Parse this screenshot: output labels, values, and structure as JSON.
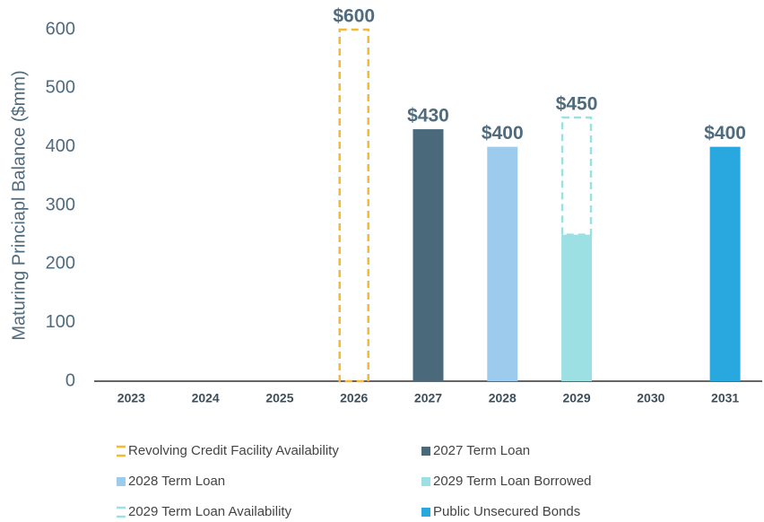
{
  "chart_data": {
    "type": "bar",
    "stacked": true,
    "y_label": "Maturing Princiapl Balance ($mm)",
    "categories": [
      "2023",
      "2024",
      "2025",
      "2026",
      "2027",
      "2028",
      "2029",
      "2030",
      "2031"
    ],
    "series": [
      {
        "name": "Revolving Credit Facility Availability",
        "color": "#f5b935",
        "style": "dashed",
        "values": [
          null,
          null,
          null,
          600,
          null,
          null,
          null,
          null,
          null
        ]
      },
      {
        "name": "2027 Term Loan",
        "color": "#4a6a7c",
        "style": "solid",
        "values": [
          null,
          null,
          null,
          null,
          430,
          null,
          null,
          null,
          null
        ]
      },
      {
        "name": "2028 Term Loan",
        "color": "#9ccbee",
        "style": "solid",
        "values": [
          null,
          null,
          null,
          null,
          null,
          400,
          null,
          null,
          null
        ]
      },
      {
        "name": "2029 Term Loan Borrowed",
        "color": "#9de0e3",
        "style": "solid",
        "values": [
          null,
          null,
          null,
          null,
          null,
          null,
          250,
          null,
          null
        ]
      },
      {
        "name": "2029 Term Loan Availability",
        "color": "#9de0e3",
        "style": "dashed",
        "values": [
          null,
          null,
          null,
          null,
          null,
          null,
          200,
          null,
          null
        ]
      },
      {
        "name": "Public Unsecured Bonds",
        "color": "#29a8e0",
        "style": "solid",
        "values": [
          null,
          null,
          null,
          null,
          null,
          null,
          null,
          null,
          400
        ]
      }
    ],
    "totals": {
      "values": [
        null,
        null,
        null,
        600,
        430,
        400,
        450,
        null,
        400
      ],
      "value_labels": [
        null,
        null,
        null,
        "$600",
        "$430",
        "$400",
        "$450",
        null,
        "$400"
      ]
    },
    "ylim": [
      0,
      600
    ],
    "yticks": [
      0,
      100,
      200,
      300,
      400,
      500,
      600
    ],
    "grid": false,
    "legend": "bottom"
  }
}
